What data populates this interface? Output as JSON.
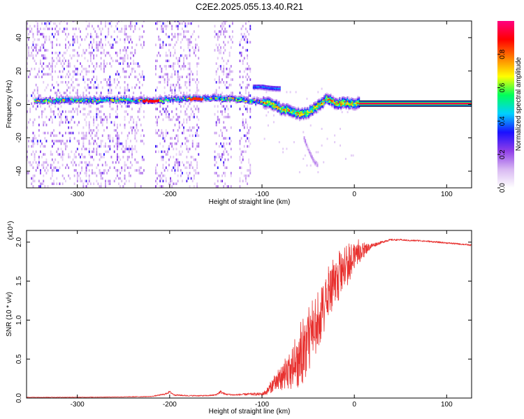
{
  "title": "C2E2.2025.055.13.40.R21",
  "chart_data": [
    {
      "type": "heatmap",
      "xlabel": "Height of straight line (km)",
      "ylabel": "Frequency (Hz)",
      "xlim": [
        -355,
        127
      ],
      "ylim": [
        -50,
        50
      ],
      "xticks": [
        -300,
        -200,
        -100,
        0,
        100
      ],
      "xtick_labels": [
        "-300",
        "-200",
        "-100",
        "0",
        "100"
      ],
      "yticks": [
        -40,
        -20,
        0,
        20,
        40
      ],
      "ytick_labels": [
        "-40",
        "-20",
        "0",
        "20",
        "40"
      ],
      "grid": false,
      "colorbar": {
        "label": "Normalized spectral amplitude",
        "range": [
          0,
          1
        ],
        "ticks": [
          0.0,
          0.2,
          0.4,
          0.6,
          0.8
        ],
        "tick_labels": [
          "0.0",
          "0.2",
          "0.4",
          "0.6",
          "0.8"
        ],
        "colors": [
          "#ffffff",
          "#d8b8f2",
          "#8f3ee8",
          "#1a10ff",
          "#00d0ff",
          "#00ff5a",
          "#ffff00",
          "#ff8000",
          "#ff0000",
          "#ff0080"
        ]
      },
      "noise_gaps": [
        [
          -228,
          -216
        ],
        [
          -168,
          -152
        ],
        [
          -132,
          -125
        ],
        [
          -113,
          127
        ]
      ],
      "ridge": {
        "x": [
          -345,
          -300,
          -250,
          -220,
          -190,
          -160,
          -135,
          -115,
          -100,
          -90,
          -80,
          -70,
          -60,
          -50,
          -45,
          -40,
          -35,
          -30,
          -25,
          -20,
          -15,
          -10,
          -5,
          0,
          5,
          10,
          127
        ],
        "freq": [
          2,
          2.2,
          2.5,
          2,
          3,
          3.5,
          3,
          2.2,
          1,
          0,
          -3,
          -4,
          -6,
          -5,
          -3,
          -1,
          1,
          3,
          2,
          0,
          0.5,
          1,
          0,
          0,
          1,
          0.5,
          0.5
        ]
      },
      "upper_branch": {
        "x": [
          -110,
          -100,
          -95,
          -85,
          -80
        ],
        "freq": [
          11,
          11,
          10.5,
          10,
          10
        ]
      },
      "lower_branch": {
        "x": [
          -55,
          -50,
          -45,
          -40
        ],
        "freq": [
          -20,
          -27,
          -33,
          -36
        ]
      },
      "steady_tone": {
        "x_start": 5,
        "x_end": 127,
        "freq": 0.5,
        "amplitude": 0.95
      }
    },
    {
      "type": "line",
      "xlabel": "Height of straight line (km)",
      "ylabel": "SNR (10 * v/v)",
      "yscale_label": "(x10⁴)",
      "xlim": [
        -355,
        127
      ],
      "ylim": [
        0,
        2.15
      ],
      "xticks": [
        -300,
        -200,
        -100,
        0,
        100
      ],
      "xtick_labels": [
        "-300",
        "-200",
        "-100",
        "0",
        "100"
      ],
      "yticks": [
        0,
        0.5,
        1.0,
        1.5,
        2.0
      ],
      "ytick_labels": [
        "0.0",
        "0.5",
        "1.0",
        "1.5",
        "2.0"
      ],
      "color": "#e8312f",
      "grid": false,
      "series": [
        {
          "name": "SNR",
          "x": [
            -355,
            -300,
            -250,
            -220,
            -205,
            -200,
            -195,
            -180,
            -160,
            -150,
            -145,
            -140,
            -130,
            -115,
            -100,
            -95,
            -90,
            -85,
            -80,
            -75,
            -70,
            -65,
            -60,
            -55,
            -50,
            -45,
            -40,
            -35,
            -30,
            -25,
            -20,
            -15,
            -10,
            -5,
            0,
            5,
            10,
            15,
            20,
            25,
            30,
            35,
            40,
            50,
            60,
            70,
            80,
            90,
            100,
            110,
            120,
            127
          ],
          "y": [
            0.01,
            0.01,
            0.015,
            0.02,
            0.05,
            0.08,
            0.04,
            0.03,
            0.03,
            0.04,
            0.08,
            0.05,
            0.04,
            0.05,
            0.05,
            0.08,
            0.15,
            0.2,
            0.25,
            0.3,
            0.3,
            0.35,
            0.45,
            0.55,
            0.7,
            0.8,
            0.9,
            1.1,
            1.25,
            1.35,
            1.45,
            1.55,
            1.6,
            1.7,
            1.8,
            1.85,
            1.9,
            1.93,
            1.96,
            1.98,
            2.0,
            2.02,
            2.03,
            2.03,
            2.02,
            2.02,
            2.01,
            2.0,
            1.99,
            1.98,
            1.97,
            1.96
          ],
          "noise_amplitude": [
            0.003,
            0.003,
            0.004,
            0.005,
            0.01,
            0.015,
            0.01,
            0.008,
            0.008,
            0.01,
            0.02,
            0.012,
            0.01,
            0.015,
            0.02,
            0.04,
            0.08,
            0.12,
            0.15,
            0.18,
            0.2,
            0.25,
            0.3,
            0.35,
            0.35,
            0.35,
            0.35,
            0.35,
            0.3,
            0.3,
            0.28,
            0.25,
            0.22,
            0.2,
            0.18,
            0.12,
            0.1,
            0.05,
            0.03,
            0.02,
            0.015,
            0.015,
            0.012,
            0.01,
            0.01,
            0.01,
            0.01,
            0.01,
            0.01,
            0.01,
            0.01,
            0.01
          ]
        }
      ]
    }
  ]
}
